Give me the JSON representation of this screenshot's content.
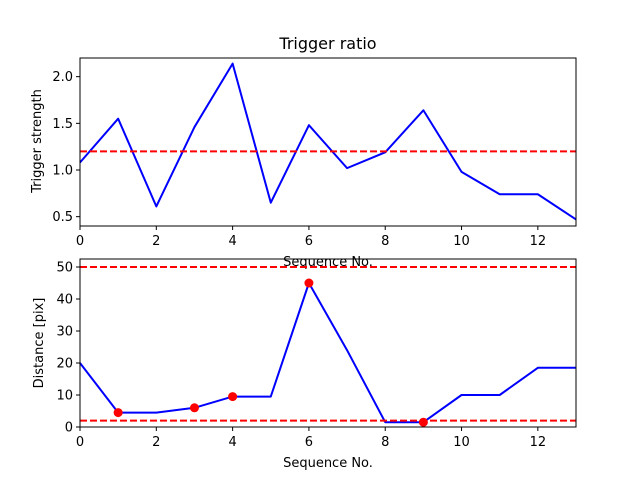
{
  "chart_data": [
    {
      "type": "line",
      "title": "Trigger ratio",
      "xlabel": "Sequence No.",
      "ylabel": "Trigger strength",
      "xlim": [
        0,
        13
      ],
      "ylim": [
        0.4,
        2.2
      ],
      "xticks": [
        0,
        2,
        4,
        6,
        8,
        10,
        12
      ],
      "yticks": [
        0.5,
        1.0,
        1.5,
        2.0
      ],
      "ytick_labels": [
        "0.5",
        "1.0",
        "1.5",
        "2.0"
      ],
      "grid": false,
      "series": [
        {
          "x": [
            0,
            1,
            2,
            3,
            4,
            5,
            6,
            7,
            8,
            9,
            10,
            11,
            12,
            13
          ],
          "values": [
            1.08,
            1.55,
            0.61,
            1.46,
            2.14,
            0.65,
            1.48,
            1.02,
            1.19,
            1.64,
            0.98,
            0.74,
            0.74,
            0.47
          ],
          "color": "#0000ff"
        }
      ],
      "hlines": [
        {
          "y": 1.2,
          "color": "#ff0000",
          "style": "dashed"
        }
      ]
    },
    {
      "type": "line",
      "title": "",
      "xlabel": "Sequence No.",
      "ylabel": "Distance [pix]",
      "xlim": [
        0,
        13
      ],
      "ylim": [
        0,
        52.5
      ],
      "xticks": [
        0,
        2,
        4,
        6,
        8,
        10,
        12
      ],
      "yticks": [
        0,
        10,
        20,
        30,
        40,
        50
      ],
      "ytick_labels": [
        "0",
        "10",
        "20",
        "30",
        "40",
        "50"
      ],
      "grid": false,
      "series": [
        {
          "x": [
            0,
            1,
            2,
            3,
            4,
            5,
            6,
            7,
            8,
            9,
            10,
            11,
            12,
            13
          ],
          "values": [
            20,
            4.5,
            4.5,
            6,
            9.5,
            9.5,
            45,
            24,
            1.5,
            1.5,
            10,
            10,
            18.5,
            18.5
          ],
          "color": "#0000ff"
        }
      ],
      "markers": {
        "x": [
          1,
          3,
          4,
          6,
          9
        ],
        "y": [
          4.5,
          6,
          9.5,
          45,
          1.5
        ],
        "color": "#ff0000"
      },
      "hlines": [
        {
          "y": 50,
          "color": "#ff0000",
          "style": "dashed"
        },
        {
          "y": 2,
          "color": "#ff0000",
          "style": "dashed"
        }
      ]
    }
  ]
}
